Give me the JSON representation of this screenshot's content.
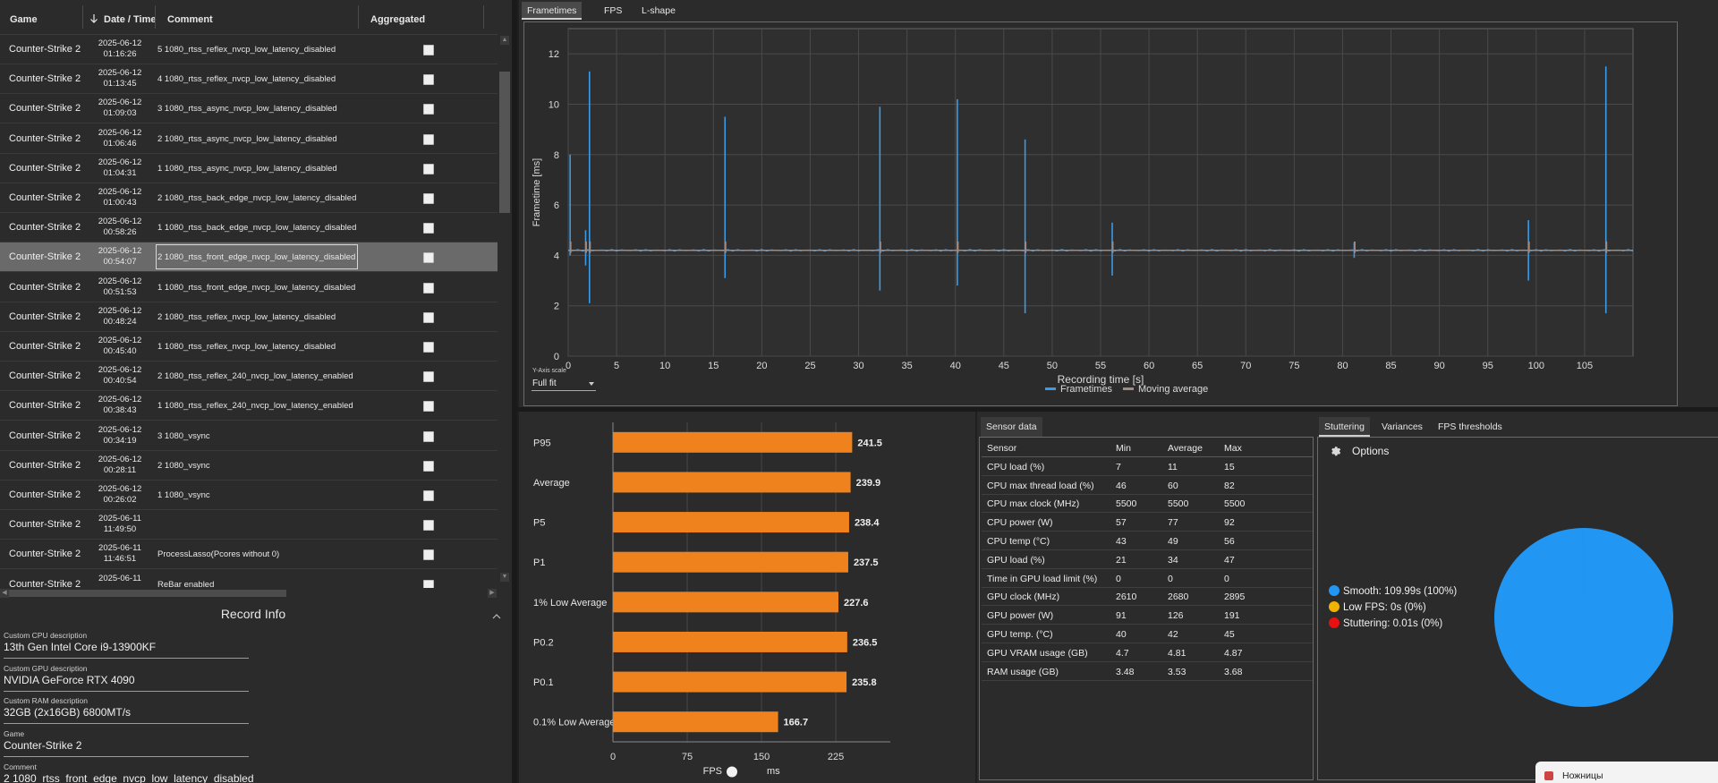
{
  "table": {
    "headers": {
      "game": "Game",
      "date": "Date / Time",
      "comment": "Comment",
      "aggregated": "Aggregated"
    },
    "rows": [
      {
        "game": "Counter-Strike 2",
        "date": "2025-06-12",
        "time": "01:16:26",
        "comment": "5 1080_rtss_reflex_nvcp_low_latency_disabled"
      },
      {
        "game": "Counter-Strike 2",
        "date": "2025-06-12",
        "time": "01:13:45",
        "comment": "4 1080_rtss_reflex_nvcp_low_latency_disabled"
      },
      {
        "game": "Counter-Strike 2",
        "date": "2025-06-12",
        "time": "01:09:03",
        "comment": "3 1080_rtss_async_nvcp_low_latency_disabled"
      },
      {
        "game": "Counter-Strike 2",
        "date": "2025-06-12",
        "time": "01:06:46",
        "comment": "2 1080_rtss_async_nvcp_low_latency_disabled"
      },
      {
        "game": "Counter-Strike 2",
        "date": "2025-06-12",
        "time": "01:04:31",
        "comment": "1 1080_rtss_async_nvcp_low_latency_disabled"
      },
      {
        "game": "Counter-Strike 2",
        "date": "2025-06-12",
        "time": "01:00:43",
        "comment": "2 1080_rtss_back_edge_nvcp_low_latency_disabled"
      },
      {
        "game": "Counter-Strike 2",
        "date": "2025-06-12",
        "time": "00:58:26",
        "comment": "1 1080_rtss_back_edge_nvcp_low_latency_disabled"
      },
      {
        "game": "Counter-Strike 2",
        "date": "2025-06-12",
        "time": "00:54:07",
        "comment": "2 1080_rtss_front_edge_nvcp_low_latency_disabled",
        "selected": true
      },
      {
        "game": "Counter-Strike 2",
        "date": "2025-06-12",
        "time": "00:51:53",
        "comment": "1 1080_rtss_front_edge_nvcp_low_latency_disabled"
      },
      {
        "game": "Counter-Strike 2",
        "date": "2025-06-12",
        "time": "00:48:24",
        "comment": "2 1080_rtss_reflex_nvcp_low_latency_disabled"
      },
      {
        "game": "Counter-Strike 2",
        "date": "2025-06-12",
        "time": "00:45:40",
        "comment": "1 1080_rtss_reflex_nvcp_low_latency_disabled"
      },
      {
        "game": "Counter-Strike 2",
        "date": "2025-06-12",
        "time": "00:40:54",
        "comment": "2 1080_rtss_reflex_240_nvcp_low_latency_enabled"
      },
      {
        "game": "Counter-Strike 2",
        "date": "2025-06-12",
        "time": "00:38:43",
        "comment": "1 1080_rtss_reflex_240_nvcp_low_latency_enabled"
      },
      {
        "game": "Counter-Strike 2",
        "date": "2025-06-12",
        "time": "00:34:19",
        "comment": "3 1080_vsync"
      },
      {
        "game": "Counter-Strike 2",
        "date": "2025-06-12",
        "time": "00:28:11",
        "comment": "2 1080_vsync"
      },
      {
        "game": "Counter-Strike 2",
        "date": "2025-06-12",
        "time": "00:26:02",
        "comment": "1 1080_vsync"
      },
      {
        "game": "Counter-Strike 2",
        "date": "2025-06-11",
        "time": "11:49:50",
        "comment": ""
      },
      {
        "game": "Counter-Strike 2",
        "date": "2025-06-11",
        "time": "11:46:51",
        "comment": "ProcessLasso(Pcores without 0)"
      },
      {
        "game": "Counter-Strike 2",
        "date": "2025-06-11",
        "time": "",
        "comment": "ReBar enabled"
      }
    ]
  },
  "record_info": {
    "title": "Record Info",
    "fields": [
      {
        "label": "Custom CPU description",
        "value": "13th Gen Intel Core i9-13900KF"
      },
      {
        "label": "Custom GPU description",
        "value": "NVIDIA GeForce RTX 4090"
      },
      {
        "label": "Custom RAM description",
        "value": "32GB (2x16GB) 6800MT/s"
      },
      {
        "label": "Game",
        "value": "Counter-Strike 2"
      },
      {
        "label": "Comment",
        "value": "2 1080_rtss_front_edge_nvcp_low_latency_disabled"
      }
    ]
  },
  "top_tabs": [
    "Frametimes",
    "FPS",
    "L-shape"
  ],
  "y_axis_scale": {
    "label": "Y-Axis scale",
    "value": "Full fit"
  },
  "chart_data": [
    {
      "type": "line",
      "xlabel": "Recording time [s]",
      "ylabel": "Frametime [ms]",
      "xlim": [
        0,
        110
      ],
      "ylim": [
        0,
        13
      ],
      "xticks": [
        0,
        5,
        10,
        15,
        20,
        25,
        30,
        35,
        40,
        45,
        50,
        55,
        60,
        65,
        70,
        75,
        80,
        85,
        90,
        95,
        100,
        105
      ],
      "yticks": [
        0,
        2,
        4,
        6,
        8,
        10,
        12
      ],
      "grid": true,
      "legend_position": "bottom-center",
      "baseline": 4.2,
      "series": [
        {
          "name": "Frametimes",
          "color": "#3a9be6",
          "spikes": [
            {
              "x": 0.2,
              "high": 8.0,
              "low": 4.0
            },
            {
              "x": 1.8,
              "high": 5.0,
              "low": 3.6
            },
            {
              "x": 2.2,
              "high": 11.3,
              "low": 2.1
            },
            {
              "x": 16.2,
              "high": 9.5,
              "low": 3.1
            },
            {
              "x": 32.2,
              "high": 9.9,
              "low": 2.6
            },
            {
              "x": 40.2,
              "high": 10.2,
              "low": 2.8
            },
            {
              "x": 47.2,
              "high": 8.6,
              "low": 1.7
            },
            {
              "x": 56.2,
              "high": 5.3,
              "low": 3.2
            },
            {
              "x": 81.2,
              "high": 4.5,
              "low": 3.9
            },
            {
              "x": 99.2,
              "high": 5.4,
              "low": 3.0
            },
            {
              "x": 107.2,
              "high": 11.5,
              "low": 1.7
            }
          ]
        },
        {
          "name": "Moving average",
          "color": "#a08a82",
          "value": 4.2
        }
      ]
    },
    {
      "type": "bar",
      "orientation": "horizontal",
      "categories": [
        "P95",
        "Average",
        "P5",
        "P1",
        "1% Low Average",
        "P0.2",
        "P0.1",
        "0.1% Low Average"
      ],
      "values": [
        241.5,
        239.9,
        238.4,
        237.5,
        227.6,
        236.5,
        235.8,
        166.7
      ],
      "xticks": [
        0,
        75,
        150,
        225
      ],
      "xlim": [
        0,
        280
      ],
      "color": "#f0821e",
      "toggle": {
        "left": "FPS",
        "right": "ms"
      }
    },
    {
      "type": "pie",
      "labels": [
        "Smooth",
        "Low FPS",
        "Stuttering"
      ],
      "values": [
        109.99,
        0,
        0.01
      ],
      "colors": [
        "#2196f3",
        "#f0b400",
        "#e81010"
      ]
    }
  ],
  "sensor": {
    "tab": "Sensor data",
    "headers": [
      "Sensor",
      "Min",
      "Average",
      "Max"
    ],
    "rows": [
      [
        "CPU load (%)",
        "7",
        "11",
        "15"
      ],
      [
        "CPU max thread load (%)",
        "46",
        "60",
        "82"
      ],
      [
        "CPU max clock (MHz)",
        "5500",
        "5500",
        "5500"
      ],
      [
        "CPU power (W)",
        "57",
        "77",
        "92"
      ],
      [
        "CPU temp (°C)",
        "43",
        "49",
        "56"
      ],
      [
        "GPU load (%)",
        "21",
        "34",
        "47"
      ],
      [
        "Time in GPU load limit (%)",
        "0",
        "0",
        "0"
      ],
      [
        "GPU clock (MHz)",
        "2610",
        "2680",
        "2895"
      ],
      [
        "GPU power (W)",
        "91",
        "126",
        "191"
      ],
      [
        "GPU temp. (°C)",
        "40",
        "42",
        "45"
      ],
      [
        "GPU VRAM usage (GB)",
        "4.7",
        "4.81",
        "4.87"
      ],
      [
        "RAM usage (GB)",
        "3.48",
        "3.53",
        "3.68"
      ]
    ]
  },
  "stuttering": {
    "tabs": [
      "Stuttering",
      "Variances",
      "FPS thresholds"
    ],
    "options_label": "Options",
    "legend": [
      "Smooth:  109.99s (100%)",
      "Low FPS:  0s (0%)",
      "Stuttering:  0.01s (0%)"
    ]
  },
  "taskbar": {
    "label": "Ножницы"
  }
}
